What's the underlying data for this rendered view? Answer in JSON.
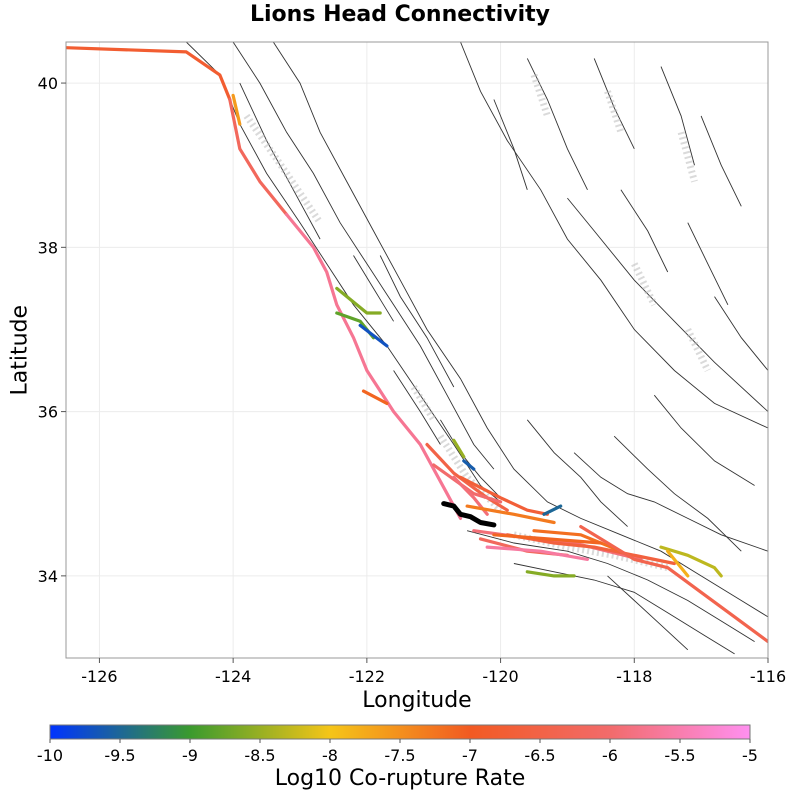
{
  "chart": {
    "title": "Lions Head Connectivity",
    "xlabel": "Longitude",
    "ylabel": "Latitude",
    "colorbar_label": "Log10 Co-rupture Rate"
  },
  "chart_data": {
    "type": "map",
    "title": "Lions Head Connectivity",
    "xlabel": "Longitude",
    "ylabel": "Latitude",
    "xlim": [
      -126.5,
      -116
    ],
    "ylim": [
      33,
      40.5
    ],
    "x_ticks": [
      -126,
      -124,
      -122,
      -120,
      -118,
      -116
    ],
    "y_ticks": [
      34,
      36,
      38,
      40
    ],
    "x_tick_labels": [
      "-126",
      "-124",
      "-122",
      "-120",
      "-118",
      "-116"
    ],
    "y_tick_labels": [
      "34",
      "36",
      "38",
      "40"
    ],
    "grid": true,
    "colorbar": {
      "label": "Log10 Co-rupture Rate",
      "range": [
        -10,
        -5
      ],
      "ticks": [
        -10,
        -9.5,
        -9,
        -8.5,
        -8,
        -7.5,
        -7,
        -6.5,
        -6,
        -5.5,
        -5
      ],
      "tick_labels": [
        "-10",
        "-9.5",
        "-9",
        "-8.5",
        "-8",
        "-7.5",
        "-7",
        "-6.5",
        "-6",
        "-5.5",
        "-5"
      ],
      "colors": [
        "#0033ff",
        "#3a9a2e",
        "#f5c518",
        "#f25a22",
        "#f26b6b",
        "#ff90f0"
      ]
    },
    "highlighted_fault": {
      "name": "Lions Head",
      "color": "#000000",
      "lonlat": [
        [
          -120.85,
          34.88
        ],
        [
          -120.7,
          34.85
        ],
        [
          -120.6,
          34.75
        ],
        [
          -120.45,
          34.72
        ],
        [
          -120.3,
          34.65
        ],
        [
          -120.1,
          34.62
        ]
      ]
    },
    "colored_faults": [
      {
        "value": -6.8,
        "lonlat": [
          [
            -126.5,
            40.43
          ],
          [
            -124.7,
            40.38
          ],
          [
            -124.2,
            40.1
          ],
          [
            -124.05,
            39.8
          ]
        ]
      },
      {
        "value": -6.2,
        "lonlat": [
          [
            -124.05,
            39.8
          ],
          [
            -123.9,
            39.2
          ],
          [
            -123.6,
            38.8
          ],
          [
            -123.2,
            38.4
          ]
        ]
      },
      {
        "value": -5.7,
        "lonlat": [
          [
            -123.2,
            38.4
          ],
          [
            -122.8,
            38.0
          ],
          [
            -122.6,
            37.7
          ],
          [
            -122.45,
            37.3
          ],
          [
            -122.2,
            36.9
          ],
          [
            -122.0,
            36.5
          ],
          [
            -121.6,
            36.0
          ],
          [
            -121.2,
            35.6
          ],
          [
            -121.0,
            35.3
          ],
          [
            -120.8,
            35.0
          ],
          [
            -120.6,
            34.7
          ]
        ]
      },
      {
        "value": -7.6,
        "lonlat": [
          [
            -124.0,
            39.85
          ],
          [
            -123.9,
            39.5
          ]
        ]
      },
      {
        "value": -8.6,
        "lonlat": [
          [
            -122.45,
            37.5
          ],
          [
            -122.0,
            37.2
          ],
          [
            -121.8,
            37.2
          ]
        ]
      },
      {
        "value": -8.8,
        "lonlat": [
          [
            -122.45,
            37.2
          ],
          [
            -122.1,
            37.1
          ],
          [
            -121.9,
            36.9
          ]
        ]
      },
      {
        "value": -9.7,
        "lonlat": [
          [
            -122.1,
            37.05
          ],
          [
            -121.7,
            36.8
          ]
        ]
      },
      {
        "value": -7.1,
        "lonlat": [
          [
            -122.05,
            36.25
          ],
          [
            -121.7,
            36.1
          ]
        ]
      },
      {
        "value": -8.5,
        "lonlat": [
          [
            -120.7,
            35.65
          ],
          [
            -120.55,
            35.45
          ]
        ]
      },
      {
        "value": -9.6,
        "lonlat": [
          [
            -120.55,
            35.4
          ],
          [
            -120.4,
            35.3
          ]
        ]
      },
      {
        "value": -6.5,
        "lonlat": [
          [
            -121.1,
            35.6
          ],
          [
            -120.7,
            35.25
          ],
          [
            -120.2,
            34.95
          ],
          [
            -119.9,
            34.8
          ]
        ]
      },
      {
        "value": -6.0,
        "lonlat": [
          [
            -121.0,
            35.35
          ],
          [
            -120.4,
            35.0
          ],
          [
            -120.0,
            34.9
          ]
        ]
      },
      {
        "value": -5.9,
        "lonlat": [
          [
            -120.7,
            35.2
          ],
          [
            -120.4,
            34.95
          ],
          [
            -120.2,
            34.75
          ]
        ]
      },
      {
        "value": -6.7,
        "lonlat": [
          [
            -120.6,
            35.2
          ],
          [
            -120.0,
            34.95
          ],
          [
            -119.6,
            34.8
          ],
          [
            -119.3,
            34.75
          ]
        ]
      },
      {
        "value": -9.5,
        "lonlat": [
          [
            -119.35,
            34.75
          ],
          [
            -119.1,
            34.85
          ]
        ]
      },
      {
        "value": -7.3,
        "lonlat": [
          [
            -120.5,
            34.85
          ],
          [
            -119.8,
            34.75
          ],
          [
            -119.2,
            34.65
          ]
        ]
      },
      {
        "value": -5.9,
        "lonlat": [
          [
            -120.4,
            34.55
          ],
          [
            -119.5,
            34.45
          ],
          [
            -118.9,
            34.4
          ],
          [
            -118.4,
            34.3
          ],
          [
            -117.9,
            34.2
          ]
        ]
      },
      {
        "value": -6.2,
        "lonlat": [
          [
            -120.3,
            34.45
          ],
          [
            -119.6,
            34.3
          ],
          [
            -119.0,
            34.25
          ]
        ]
      },
      {
        "value": -6.6,
        "lonlat": [
          [
            -119.9,
            34.5
          ],
          [
            -119.2,
            34.4
          ],
          [
            -118.6,
            34.35
          ],
          [
            -118.0,
            34.25
          ],
          [
            -117.4,
            34.15
          ]
        ]
      },
      {
        "value": -7.2,
        "lonlat": [
          [
            -119.5,
            34.55
          ],
          [
            -118.8,
            34.5
          ],
          [
            -118.2,
            34.3
          ]
        ]
      },
      {
        "value": -6.4,
        "lonlat": [
          [
            -118.8,
            34.6
          ],
          [
            -118.5,
            34.45
          ],
          [
            -118.0,
            34.2
          ],
          [
            -117.5,
            34.1
          ],
          [
            -117.0,
            33.8
          ],
          [
            -116.5,
            33.5
          ],
          [
            -116.0,
            33.2
          ]
        ]
      },
      {
        "value": -8.3,
        "lonlat": [
          [
            -117.6,
            34.35
          ],
          [
            -117.2,
            34.25
          ],
          [
            -116.8,
            34.1
          ],
          [
            -116.7,
            34.0
          ]
        ]
      },
      {
        "value": -7.8,
        "lonlat": [
          [
            -117.5,
            34.3
          ],
          [
            -117.2,
            34.0
          ]
        ]
      },
      {
        "value": -8.6,
        "lonlat": [
          [
            -119.6,
            34.05
          ],
          [
            -119.2,
            34.0
          ],
          [
            -118.9,
            34.0
          ]
        ]
      },
      {
        "value": -7.1,
        "lonlat": [
          [
            -120.1,
            34.5
          ],
          [
            -119.3,
            34.45
          ],
          [
            -118.5,
            34.4
          ]
        ]
      },
      {
        "value": -5.6,
        "lonlat": [
          [
            -120.2,
            34.35
          ],
          [
            -119.4,
            34.3
          ],
          [
            -118.7,
            34.2
          ]
        ]
      }
    ]
  }
}
